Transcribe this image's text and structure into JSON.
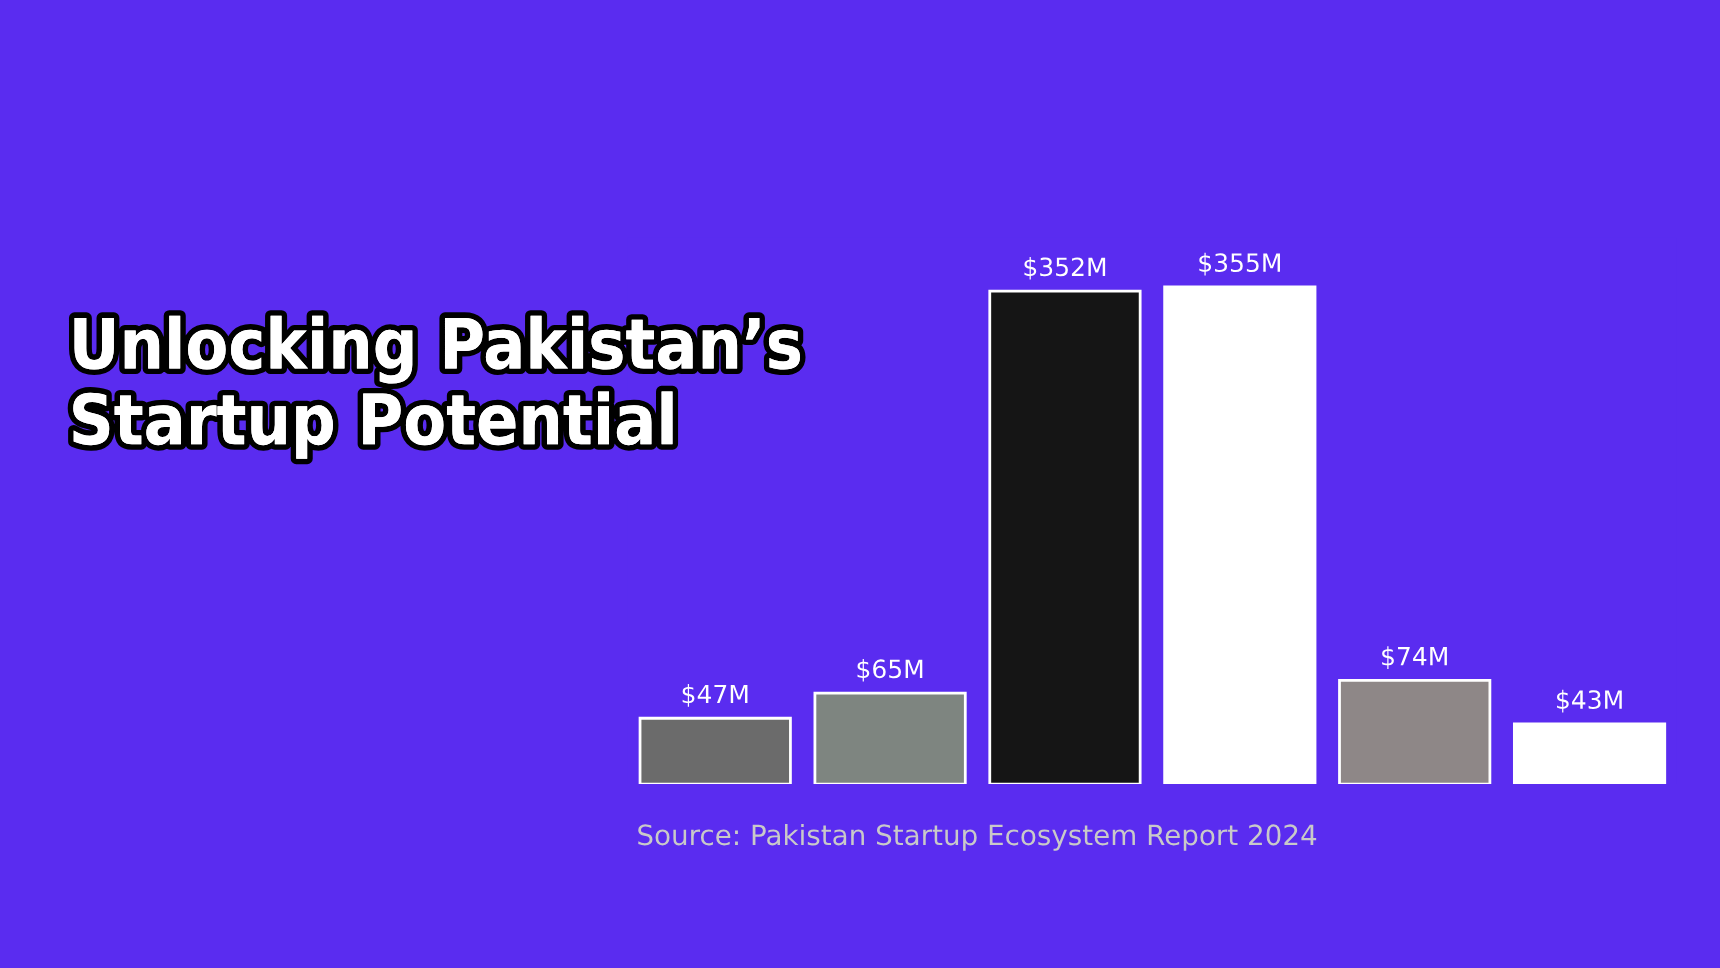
{
  "chart_data": {
    "type": "bar",
    "title": "Unlocking Pakistan’s\nStartup Potential",
    "categories": [
      null,
      null,
      null,
      null,
      null,
      null
    ],
    "values": [
      47,
      65,
      352,
      355,
      74,
      43
    ],
    "colors": [
      "#6b6b6b",
      "#7d8680",
      "#151515",
      "#ffffff",
      "#8f8686",
      "#ffffff"
    ],
    "value_labels": [
      "$47M",
      "$65M",
      "$352M",
      "$355M",
      "$74M",
      "$43M"
    ],
    "annotations": [
      "Source: Pakistan Startup Ecosystem Report 2024"
    ],
    "tick_labels": false,
    "grid": false,
    "legend": false
  }
}
